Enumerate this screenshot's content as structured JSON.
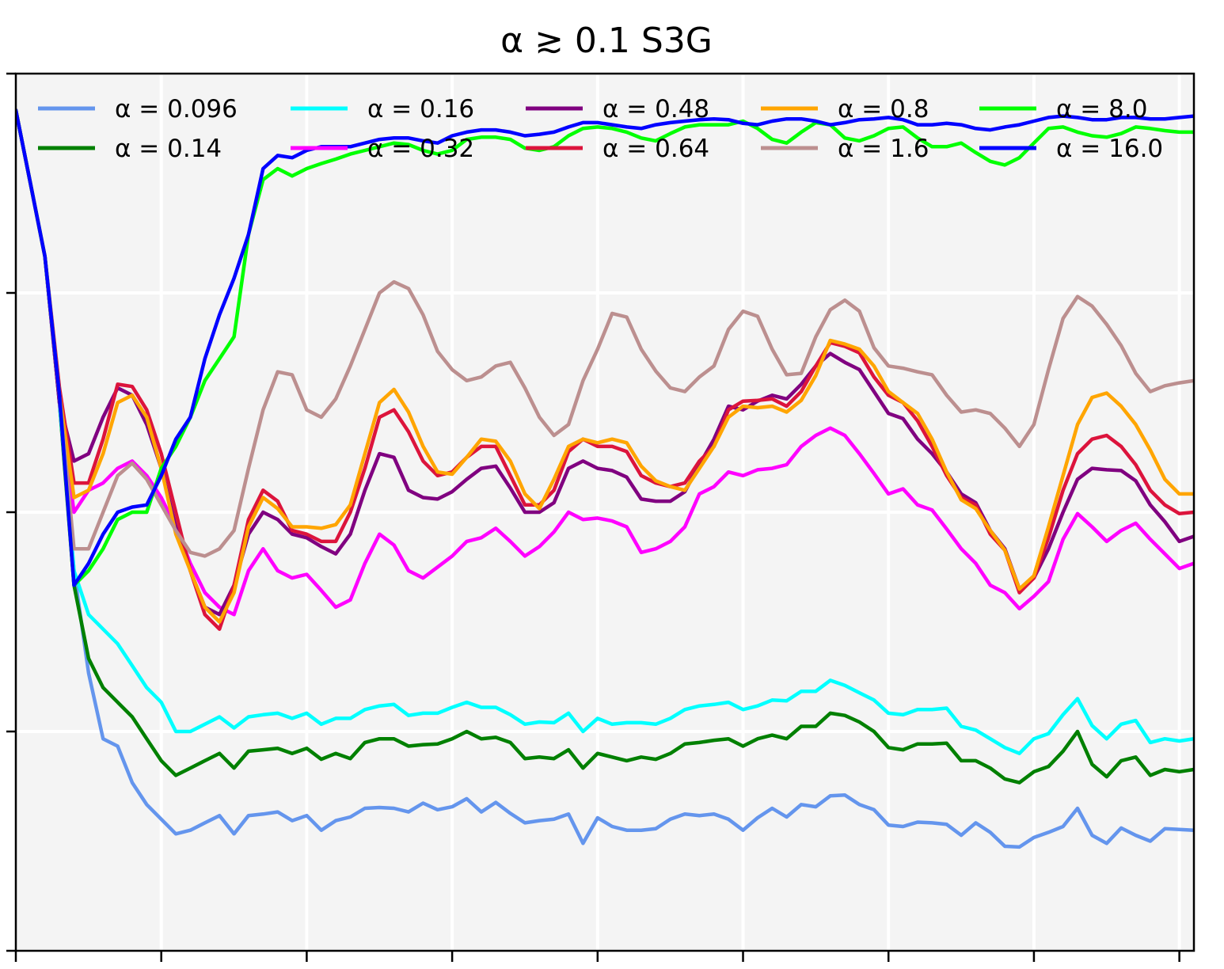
{
  "chart_data": {
    "type": "line",
    "title": "α ≳ 0.1 S3G",
    "xlabel": "",
    "ylabel": "",
    "xlim": [
      0,
      81
    ],
    "ylim": [
      0,
      1.2
    ],
    "grid": true,
    "legend_position": "top",
    "legend_columns": 5,
    "x": [
      0,
      1,
      2,
      3,
      4,
      5,
      6,
      7,
      8,
      9,
      10,
      11,
      12,
      13,
      14,
      15,
      16,
      17,
      18,
      19,
      20,
      21,
      22,
      23,
      24,
      25,
      26,
      27,
      28,
      29,
      30,
      31,
      32,
      33,
      34,
      35,
      36,
      37,
      38,
      39,
      40,
      41,
      42,
      43,
      44,
      45,
      46,
      47,
      48,
      49,
      50,
      51,
      52,
      53,
      54,
      55,
      56,
      57,
      58,
      59,
      60,
      61,
      62,
      63,
      64,
      65,
      66,
      67,
      68,
      69,
      70,
      71,
      72,
      73,
      74,
      75,
      76,
      77,
      78,
      79,
      80,
      81
    ],
    "series": [
      {
        "name": "α = 0.096",
        "color": "#6495ed",
        "values": [
          1.15,
          1.05,
          0.95,
          0.75,
          0.52,
          0.38,
          0.29,
          0.28,
          0.23,
          0.2,
          0.18,
          0.16,
          0.165,
          0.175,
          0.185,
          0.16,
          0.185,
          0.187,
          0.19,
          0.178,
          0.185,
          0.165,
          0.178,
          0.183,
          0.195,
          0.196,
          0.195,
          0.19,
          0.202,
          0.193,
          0.197,
          0.208,
          0.19,
          0.203,
          0.188,
          0.175,
          0.178,
          0.18,
          0.187,
          0.147,
          0.182,
          0.17,
          0.165,
          0.165,
          0.167,
          0.18,
          0.187,
          0.185,
          0.187,
          0.18,
          0.165,
          0.182,
          0.195,
          0.183,
          0.2,
          0.197,
          0.212,
          0.213,
          0.2,
          0.193,
          0.172,
          0.17,
          0.176,
          0.175,
          0.173,
          0.158,
          0.175,
          0.162,
          0.143,
          0.142,
          0.155,
          0.162,
          0.17,
          0.195,
          0.158,
          0.147,
          0.168,
          0.158,
          0.15,
          0.167,
          0.166,
          0.165
        ]
      },
      {
        "name": "α = 0.14",
        "color": "#008000",
        "values": [
          1.15,
          1.05,
          0.95,
          0.75,
          0.5,
          0.4,
          0.36,
          0.34,
          0.32,
          0.29,
          0.26,
          0.24,
          0.25,
          0.26,
          0.27,
          0.25,
          0.273,
          0.275,
          0.277,
          0.27,
          0.277,
          0.262,
          0.27,
          0.263,
          0.285,
          0.29,
          0.29,
          0.28,
          0.282,
          0.283,
          0.29,
          0.3,
          0.29,
          0.292,
          0.285,
          0.263,
          0.265,
          0.263,
          0.275,
          0.25,
          0.27,
          0.265,
          0.26,
          0.265,
          0.262,
          0.27,
          0.283,
          0.285,
          0.288,
          0.29,
          0.28,
          0.29,
          0.295,
          0.29,
          0.307,
          0.307,
          0.325,
          0.322,
          0.313,
          0.3,
          0.278,
          0.275,
          0.283,
          0.283,
          0.284,
          0.26,
          0.26,
          0.25,
          0.235,
          0.23,
          0.245,
          0.252,
          0.273,
          0.3,
          0.255,
          0.238,
          0.26,
          0.265,
          0.24,
          0.248,
          0.245,
          0.248
        ]
      },
      {
        "name": "α = 0.16",
        "color": "#00ffff",
        "values": [
          1.15,
          1.05,
          0.95,
          0.75,
          0.52,
          0.46,
          0.44,
          0.42,
          0.39,
          0.36,
          0.34,
          0.3,
          0.3,
          0.31,
          0.32,
          0.305,
          0.32,
          0.323,
          0.325,
          0.318,
          0.325,
          0.31,
          0.318,
          0.318,
          0.33,
          0.335,
          0.337,
          0.322,
          0.325,
          0.325,
          0.333,
          0.34,
          0.333,
          0.333,
          0.323,
          0.31,
          0.313,
          0.312,
          0.325,
          0.3,
          0.318,
          0.31,
          0.312,
          0.312,
          0.31,
          0.318,
          0.33,
          0.335,
          0.337,
          0.34,
          0.33,
          0.335,
          0.343,
          0.342,
          0.355,
          0.355,
          0.37,
          0.363,
          0.353,
          0.343,
          0.325,
          0.323,
          0.33,
          0.33,
          0.332,
          0.307,
          0.302,
          0.29,
          0.278,
          0.27,
          0.29,
          0.297,
          0.323,
          0.345,
          0.308,
          0.29,
          0.31,
          0.315,
          0.285,
          0.29,
          0.287,
          0.29
        ]
      },
      {
        "name": "α = 0.32",
        "color": "#ff00ff",
        "values": [
          1.15,
          1.05,
          0.95,
          0.75,
          0.6,
          0.63,
          0.64,
          0.66,
          0.67,
          0.65,
          0.62,
          0.58,
          0.53,
          0.49,
          0.47,
          0.46,
          0.52,
          0.55,
          0.52,
          0.51,
          0.515,
          0.493,
          0.47,
          0.48,
          0.53,
          0.57,
          0.555,
          0.52,
          0.51,
          0.525,
          0.54,
          0.56,
          0.565,
          0.578,
          0.56,
          0.54,
          0.553,
          0.573,
          0.6,
          0.59,
          0.592,
          0.588,
          0.58,
          0.545,
          0.55,
          0.56,
          0.58,
          0.625,
          0.635,
          0.655,
          0.65,
          0.658,
          0.66,
          0.665,
          0.69,
          0.705,
          0.715,
          0.705,
          0.68,
          0.653,
          0.625,
          0.632,
          0.61,
          0.603,
          0.577,
          0.55,
          0.53,
          0.5,
          0.49,
          0.468,
          0.485,
          0.505,
          0.563,
          0.598,
          0.58,
          0.56,
          0.575,
          0.585,
          0.563,
          0.543,
          0.523,
          0.53
        ]
      },
      {
        "name": "α = 0.48",
        "color": "#800080",
        "values": [
          1.15,
          1.05,
          0.95,
          0.75,
          0.67,
          0.68,
          0.73,
          0.77,
          0.76,
          0.72,
          0.66,
          0.58,
          0.52,
          0.47,
          0.46,
          0.5,
          0.57,
          0.6,
          0.59,
          0.57,
          0.565,
          0.553,
          0.543,
          0.57,
          0.63,
          0.68,
          0.675,
          0.63,
          0.62,
          0.618,
          0.628,
          0.645,
          0.66,
          0.663,
          0.633,
          0.6,
          0.6,
          0.613,
          0.66,
          0.67,
          0.66,
          0.657,
          0.648,
          0.618,
          0.615,
          0.615,
          0.628,
          0.665,
          0.7,
          0.745,
          0.74,
          0.752,
          0.76,
          0.755,
          0.775,
          0.8,
          0.817,
          0.805,
          0.795,
          0.765,
          0.735,
          0.728,
          0.7,
          0.68,
          0.655,
          0.625,
          0.613,
          0.575,
          0.55,
          0.495,
          0.51,
          0.55,
          0.6,
          0.645,
          0.66,
          0.658,
          0.657,
          0.643,
          0.61,
          0.587,
          0.56,
          0.567
        ]
      },
      {
        "name": "α = 0.64",
        "color": "#dc143c",
        "values": [
          1.15,
          1.05,
          0.95,
          0.77,
          0.64,
          0.64,
          0.7,
          0.775,
          0.772,
          0.74,
          0.68,
          0.6,
          0.52,
          0.46,
          0.44,
          0.5,
          0.59,
          0.63,
          0.615,
          0.575,
          0.57,
          0.56,
          0.56,
          0.6,
          0.66,
          0.73,
          0.74,
          0.71,
          0.67,
          0.65,
          0.655,
          0.675,
          0.69,
          0.69,
          0.65,
          0.61,
          0.61,
          0.63,
          0.683,
          0.7,
          0.69,
          0.69,
          0.683,
          0.65,
          0.64,
          0.635,
          0.64,
          0.67,
          0.69,
          0.74,
          0.752,
          0.753,
          0.755,
          0.745,
          0.765,
          0.8,
          0.832,
          0.827,
          0.818,
          0.785,
          0.76,
          0.75,
          0.725,
          0.69,
          0.65,
          0.62,
          0.61,
          0.57,
          0.548,
          0.49,
          0.51,
          0.565,
          0.63,
          0.68,
          0.7,
          0.705,
          0.69,
          0.665,
          0.63,
          0.61,
          0.598,
          0.6
        ]
      },
      {
        "name": "α = 0.8",
        "color": "#ffa500",
        "values": [
          1.15,
          1.05,
          0.95,
          0.76,
          0.62,
          0.63,
          0.68,
          0.75,
          0.76,
          0.73,
          0.66,
          0.57,
          0.52,
          0.47,
          0.45,
          0.49,
          0.58,
          0.62,
          0.605,
          0.58,
          0.58,
          0.578,
          0.583,
          0.61,
          0.68,
          0.75,
          0.768,
          0.737,
          0.69,
          0.655,
          0.652,
          0.675,
          0.7,
          0.697,
          0.67,
          0.625,
          0.605,
          0.645,
          0.69,
          0.7,
          0.695,
          0.7,
          0.695,
          0.663,
          0.643,
          0.635,
          0.63,
          0.66,
          0.69,
          0.73,
          0.745,
          0.743,
          0.745,
          0.737,
          0.753,
          0.787,
          0.835,
          0.83,
          0.823,
          0.8,
          0.765,
          0.75,
          0.735,
          0.7,
          0.655,
          0.617,
          0.605,
          0.575,
          0.548,
          0.495,
          0.513,
          0.58,
          0.65,
          0.72,
          0.757,
          0.763,
          0.745,
          0.72,
          0.685,
          0.645,
          0.625,
          0.625
        ]
      },
      {
        "name": "α = 1.6",
        "color": "#bc8f8f",
        "values": [
          1.15,
          1.05,
          0.95,
          0.76,
          0.55,
          0.55,
          0.6,
          0.65,
          0.667,
          0.645,
          0.61,
          0.575,
          0.545,
          0.54,
          0.55,
          0.575,
          0.66,
          0.74,
          0.792,
          0.788,
          0.74,
          0.73,
          0.755,
          0.8,
          0.85,
          0.9,
          0.915,
          0.906,
          0.87,
          0.82,
          0.795,
          0.78,
          0.785,
          0.8,
          0.805,
          0.77,
          0.73,
          0.705,
          0.72,
          0.78,
          0.823,
          0.872,
          0.867,
          0.823,
          0.793,
          0.77,
          0.765,
          0.785,
          0.8,
          0.85,
          0.875,
          0.868,
          0.823,
          0.788,
          0.79,
          0.84,
          0.877,
          0.89,
          0.875,
          0.825,
          0.8,
          0.797,
          0.792,
          0.788,
          0.76,
          0.737,
          0.74,
          0.735,
          0.715,
          0.69,
          0.72,
          0.795,
          0.865,
          0.895,
          0.882,
          0.857,
          0.828,
          0.79,
          0.765,
          0.773,
          0.777,
          0.78
        ]
      },
      {
        "name": "α = 8.0",
        "color": "#00ff00",
        "values": [
          1.15,
          1.05,
          0.95,
          0.76,
          0.5,
          0.52,
          0.55,
          0.59,
          0.6,
          0.6,
          0.66,
          0.69,
          0.73,
          0.78,
          0.81,
          0.84,
          0.98,
          1.055,
          1.07,
          1.06,
          1.07,
          1.077,
          1.083,
          1.09,
          1.095,
          1.1,
          1.105,
          1.103,
          1.095,
          1.09,
          1.095,
          1.11,
          1.113,
          1.113,
          1.11,
          1.098,
          1.095,
          1.1,
          1.115,
          1.125,
          1.127,
          1.125,
          1.12,
          1.112,
          1.108,
          1.118,
          1.127,
          1.13,
          1.13,
          1.13,
          1.135,
          1.125,
          1.11,
          1.105,
          1.12,
          1.133,
          1.13,
          1.112,
          1.108,
          1.115,
          1.125,
          1.127,
          1.112,
          1.1,
          1.1,
          1.105,
          1.092,
          1.08,
          1.075,
          1.085,
          1.105,
          1.125,
          1.127,
          1.12,
          1.115,
          1.113,
          1.118,
          1.127,
          1.125,
          1.122,
          1.12,
          1.12
        ]
      },
      {
        "name": "α = 16.0",
        "color": "#0000ff",
        "values": [
          1.15,
          1.05,
          0.95,
          0.76,
          0.5,
          0.53,
          0.57,
          0.6,
          0.607,
          0.61,
          0.65,
          0.7,
          0.73,
          0.81,
          0.87,
          0.92,
          0.98,
          1.07,
          1.088,
          1.085,
          1.095,
          1.1,
          1.1,
          1.1,
          1.105,
          1.11,
          1.112,
          1.112,
          1.108,
          1.105,
          1.115,
          1.12,
          1.123,
          1.123,
          1.12,
          1.115,
          1.117,
          1.12,
          1.127,
          1.133,
          1.133,
          1.13,
          1.127,
          1.125,
          1.13,
          1.133,
          1.135,
          1.137,
          1.138,
          1.137,
          1.132,
          1.13,
          1.135,
          1.138,
          1.138,
          1.135,
          1.13,
          1.133,
          1.137,
          1.138,
          1.14,
          1.137,
          1.13,
          1.13,
          1.132,
          1.13,
          1.125,
          1.123,
          1.127,
          1.13,
          1.135,
          1.14,
          1.142,
          1.14,
          1.137,
          1.137,
          1.14,
          1.14,
          1.138,
          1.138,
          1.14,
          1.142
        ]
      }
    ]
  }
}
